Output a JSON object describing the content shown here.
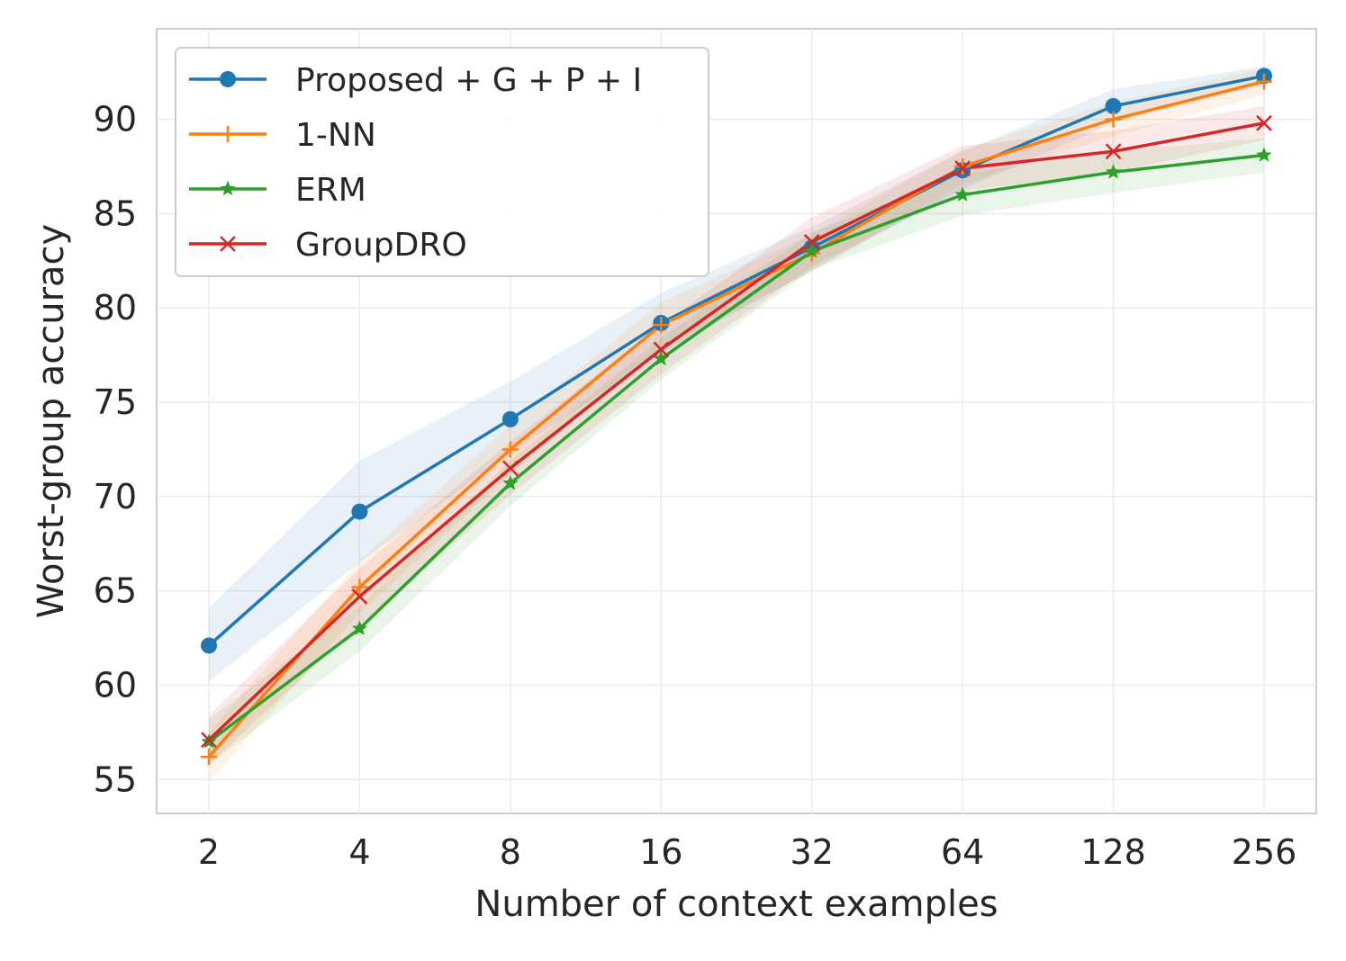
{
  "chart_data": {
    "type": "line",
    "title": "",
    "xlabel": "Number of context examples",
    "ylabel": "Worst-group accuracy",
    "x_scale": "log2",
    "categories": [
      "2",
      "4",
      "8",
      "16",
      "32",
      "64",
      "128",
      "256"
    ],
    "ylim": [
      53.2,
      94.8
    ],
    "yticks": [
      55,
      60,
      65,
      70,
      75,
      80,
      85,
      90
    ],
    "grid": true,
    "legend_position": "top-left",
    "series": [
      {
        "name": "Proposed + G + P + I",
        "color": "#1f77b4",
        "marker": "circle",
        "values": [
          62.1,
          69.2,
          74.1,
          79.2,
          83.2,
          87.3,
          90.7,
          92.3
        ],
        "lower": [
          60.2,
          66.5,
          72.3,
          77.6,
          82.0,
          86.3,
          89.8,
          91.8
        ],
        "upper": [
          64.1,
          71.9,
          76.1,
          80.8,
          84.3,
          88.3,
          91.6,
          92.8
        ]
      },
      {
        "name": "1-NN",
        "color": "#ff7f0e",
        "marker": "plus",
        "values": [
          56.2,
          65.2,
          72.5,
          79.1,
          82.9,
          87.5,
          90.0,
          92.0
        ],
        "lower": [
          54.9,
          63.8,
          71.2,
          77.9,
          81.9,
          86.6,
          89.1,
          91.3
        ],
        "upper": [
          57.5,
          66.6,
          73.8,
          80.3,
          83.9,
          88.4,
          90.9,
          92.7
        ]
      },
      {
        "name": "ERM",
        "color": "#2ca02c",
        "marker": "star",
        "values": [
          57.0,
          63.0,
          70.7,
          77.3,
          83.0,
          86.0,
          87.2,
          88.1
        ],
        "lower": [
          55.8,
          61.8,
          69.5,
          76.2,
          82.0,
          84.9,
          86.1,
          87.2
        ],
        "upper": [
          58.2,
          64.2,
          71.9,
          78.4,
          84.0,
          87.1,
          88.3,
          89.0
        ]
      },
      {
        "name": "GroupDRO",
        "color": "#d62728",
        "marker": "x",
        "values": [
          57.1,
          64.7,
          71.5,
          77.8,
          83.5,
          87.4,
          88.3,
          89.8
        ],
        "lower": [
          55.8,
          63.2,
          70.1,
          76.5,
          82.2,
          86.2,
          87.2,
          88.9
        ],
        "upper": [
          58.4,
          66.2,
          72.9,
          79.1,
          84.8,
          88.6,
          89.4,
          90.7
        ]
      }
    ]
  }
}
